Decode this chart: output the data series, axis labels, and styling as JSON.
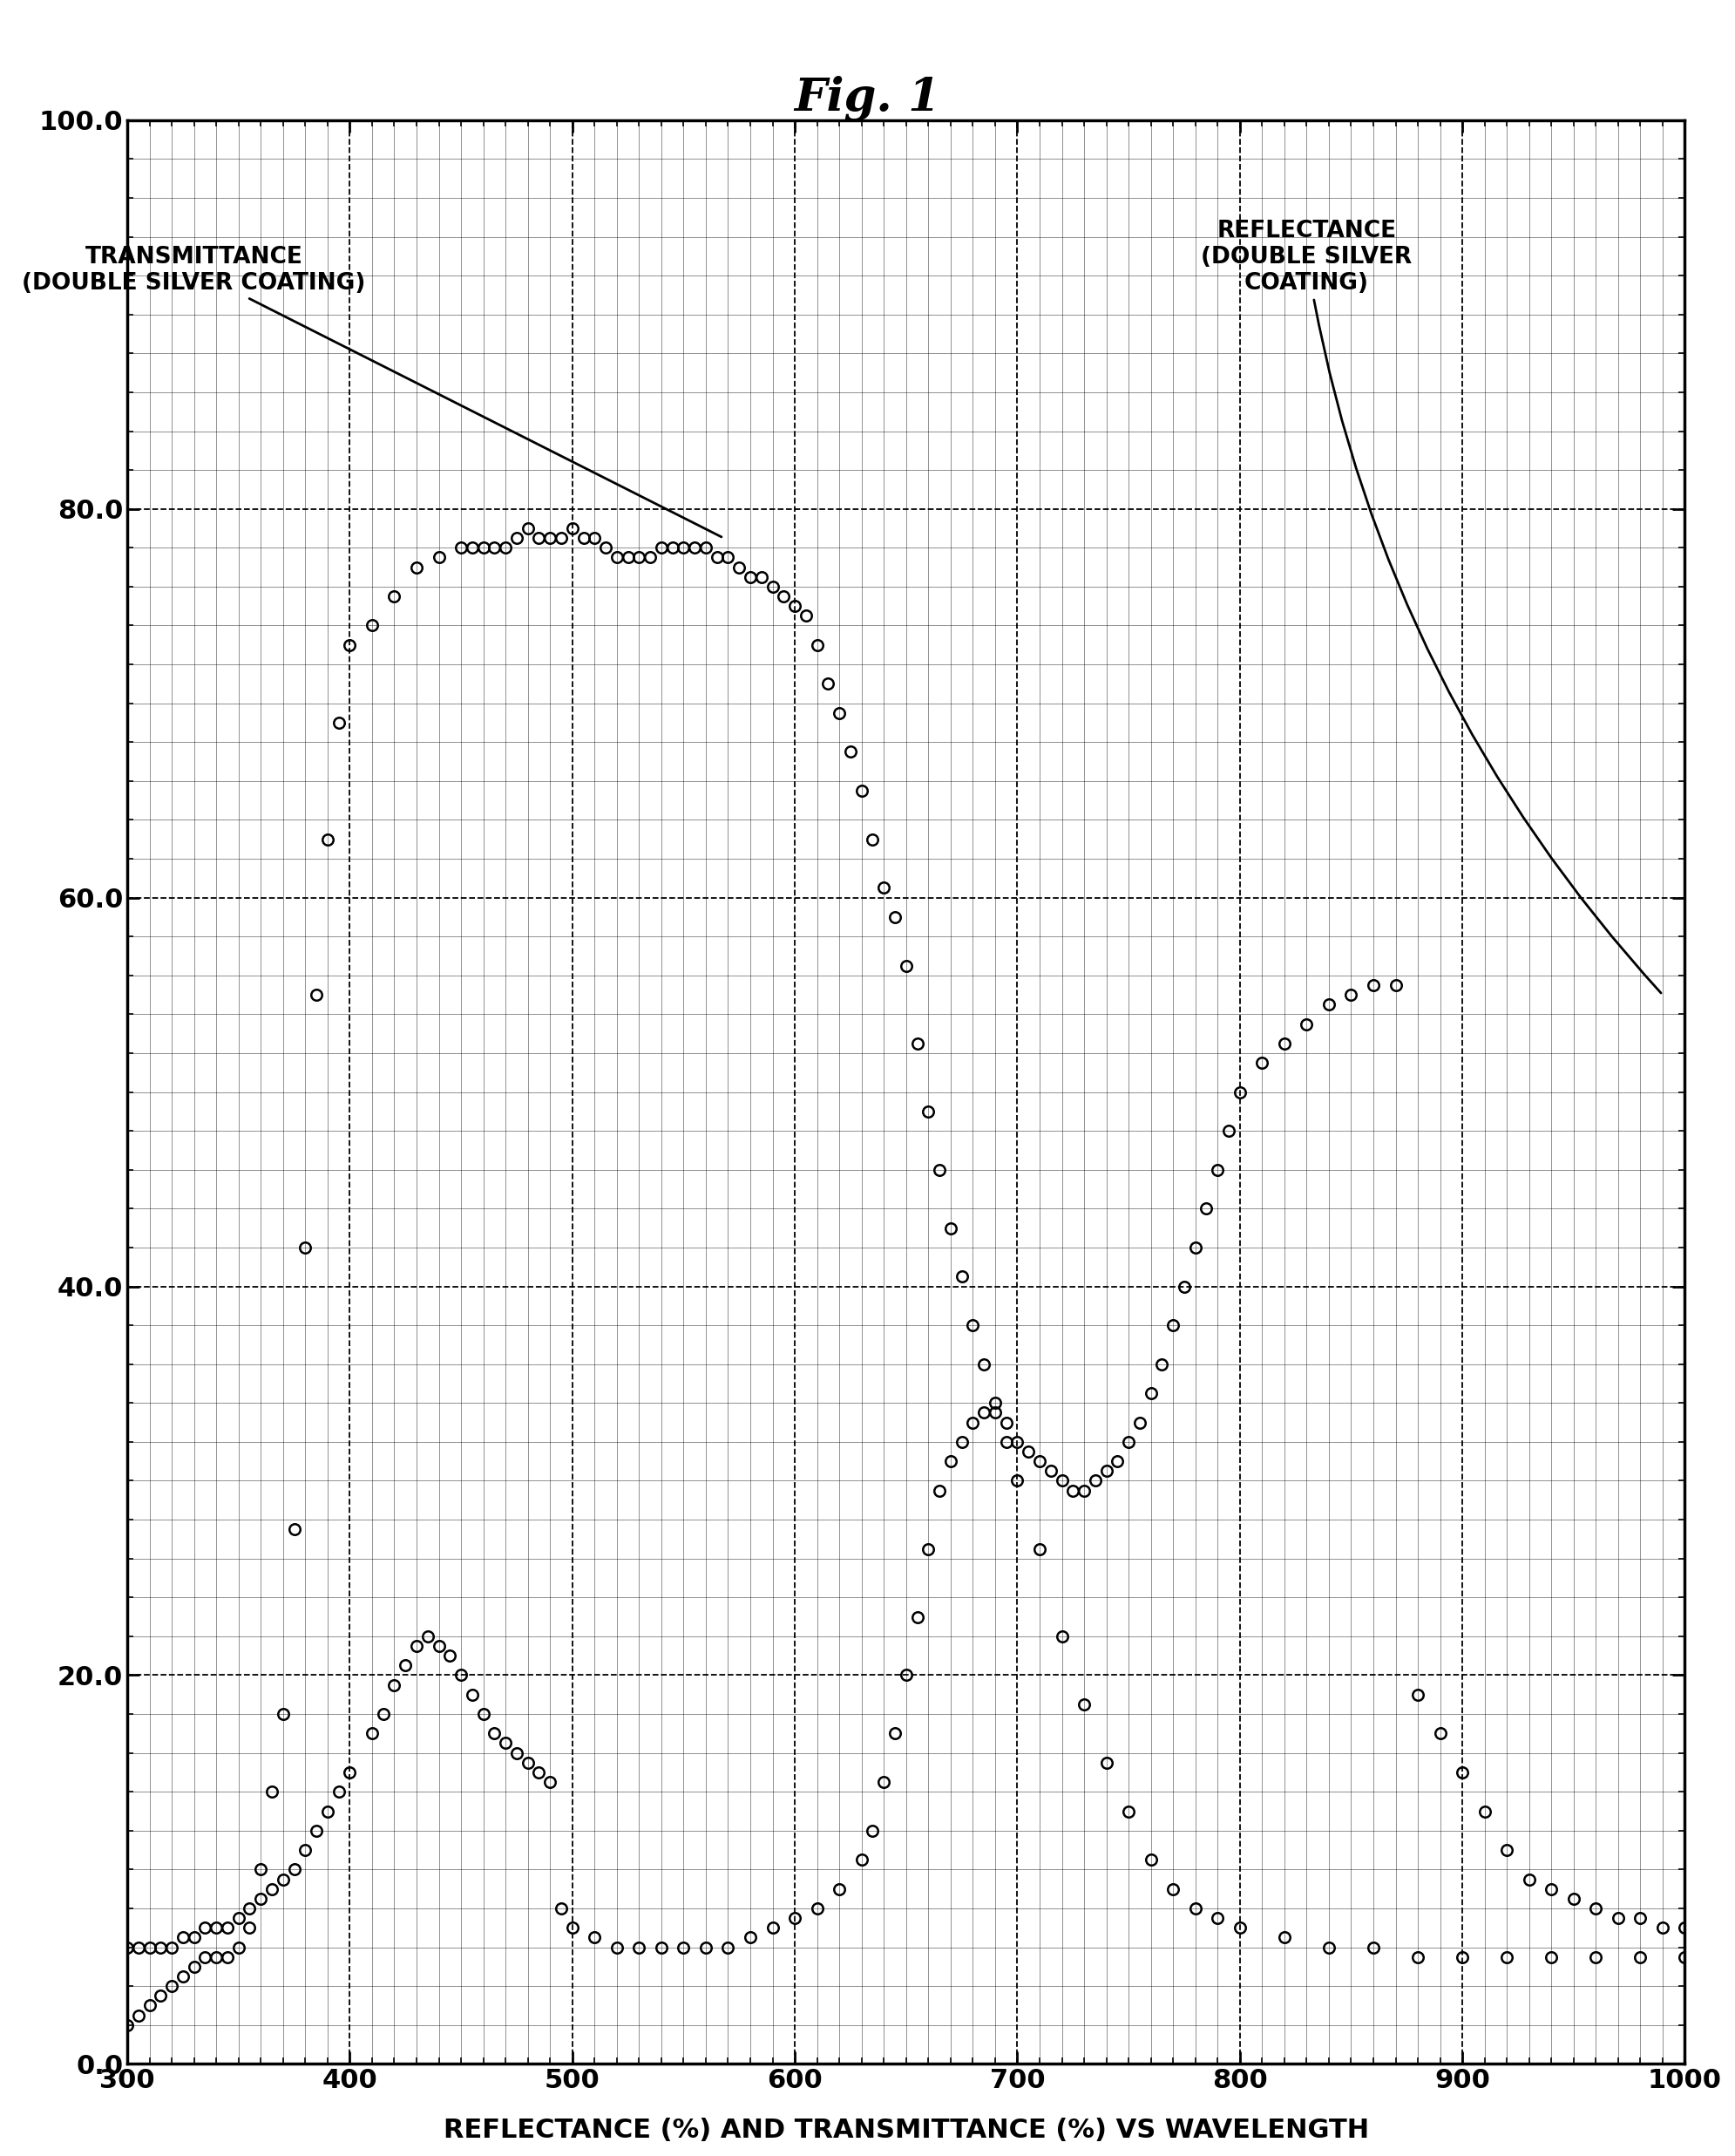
{
  "title": "Fig. 1",
  "xlabel": "REFLECTANCE (%) AND TRANSMITTANCE (%) VS WAVELENGTH",
  "xlim": [
    300,
    1000
  ],
  "ylim": [
    0.0,
    100.0
  ],
  "yticks": [
    0.0,
    20.0,
    40.0,
    60.0,
    80.0,
    100.0
  ],
  "xticks": [
    300,
    400,
    500,
    600,
    700,
    800,
    900,
    1000
  ],
  "transmittance_label": "TRANSMITTANCE\n(DOUBLE SILVER COATING)",
  "reflectance_label": "REFLECTANCE\n(DOUBLE SILVER\nCOATING)",
  "transmittance_x": [
    300,
    305,
    310,
    315,
    320,
    325,
    330,
    335,
    340,
    345,
    350,
    355,
    360,
    365,
    370,
    375,
    380,
    385,
    390,
    395,
    400,
    410,
    420,
    430,
    440,
    450,
    455,
    460,
    465,
    470,
    475,
    480,
    485,
    490,
    495,
    500,
    505,
    510,
    515,
    520,
    525,
    530,
    535,
    540,
    545,
    550,
    555,
    560,
    565,
    570,
    575,
    580,
    585,
    590,
    595,
    600,
    605,
    610,
    615,
    620,
    625,
    630,
    635,
    640,
    645,
    650,
    655,
    660,
    665,
    670,
    675,
    680,
    685,
    690,
    695,
    700,
    710,
    720,
    730,
    740,
    750,
    760,
    770,
    780,
    790,
    800,
    820,
    840,
    860,
    880,
    900,
    920,
    940,
    960,
    980,
    1000
  ],
  "transmittance_y": [
    2.0,
    2.5,
    3.0,
    3.5,
    4.0,
    4.5,
    5.0,
    5.5,
    5.5,
    5.5,
    6.0,
    7.0,
    10.0,
    14.0,
    18.0,
    27.5,
    42.0,
    55.0,
    63.0,
    69.0,
    73.0,
    74.0,
    75.5,
    77.0,
    77.5,
    78.0,
    78.0,
    78.0,
    78.0,
    78.0,
    78.5,
    79.0,
    78.5,
    78.5,
    78.5,
    79.0,
    78.5,
    78.5,
    78.0,
    77.5,
    77.5,
    77.5,
    77.5,
    78.0,
    78.0,
    78.0,
    78.0,
    78.0,
    77.5,
    77.5,
    77.0,
    76.5,
    76.5,
    76.0,
    75.5,
    75.0,
    74.5,
    73.0,
    71.0,
    69.5,
    67.5,
    65.5,
    63.0,
    60.5,
    59.0,
    56.5,
    52.5,
    49.0,
    46.0,
    43.0,
    40.5,
    38.0,
    36.0,
    34.0,
    32.0,
    30.0,
    26.5,
    22.0,
    18.5,
    15.5,
    13.0,
    10.5,
    9.0,
    8.0,
    7.5,
    7.0,
    6.5,
    6.0,
    6.0,
    5.5,
    5.5,
    5.5,
    5.5,
    5.5,
    5.5,
    5.5
  ],
  "reflectance_x": [
    300,
    305,
    310,
    315,
    320,
    325,
    330,
    335,
    340,
    345,
    350,
    355,
    360,
    365,
    370,
    375,
    380,
    385,
    390,
    395,
    400,
    410,
    415,
    420,
    425,
    430,
    435,
    440,
    445,
    450,
    455,
    460,
    465,
    470,
    475,
    480,
    485,
    490,
    495,
    500,
    510,
    520,
    530,
    540,
    550,
    560,
    570,
    580,
    590,
    600,
    610,
    620,
    630,
    635,
    640,
    645,
    650,
    655,
    660,
    665,
    670,
    675,
    680,
    685,
    690,
    695,
    700,
    705,
    710,
    715,
    720,
    725,
    730,
    735,
    740,
    745,
    750,
    755,
    760,
    765,
    770,
    775,
    780,
    785,
    790,
    795,
    800,
    810,
    820,
    830,
    840,
    850,
    860,
    870,
    880,
    890,
    900,
    910,
    920,
    930,
    940,
    950,
    960,
    970,
    980,
    990,
    1000
  ],
  "reflectance_y": [
    6.0,
    6.0,
    6.0,
    6.0,
    6.0,
    6.5,
    6.5,
    7.0,
    7.0,
    7.0,
    7.5,
    8.0,
    8.5,
    9.0,
    9.5,
    10.0,
    11.0,
    12.0,
    13.0,
    14.0,
    15.0,
    17.0,
    18.0,
    19.5,
    20.5,
    21.5,
    22.0,
    21.5,
    21.0,
    20.0,
    19.0,
    18.0,
    17.0,
    16.5,
    16.0,
    15.5,
    15.0,
    14.5,
    8.0,
    7.0,
    6.5,
    6.0,
    6.0,
    6.0,
    6.0,
    6.0,
    6.0,
    6.5,
    7.0,
    7.5,
    8.0,
    9.0,
    10.5,
    12.0,
    14.5,
    17.0,
    20.0,
    23.0,
    26.5,
    29.5,
    31.0,
    32.0,
    33.0,
    33.5,
    33.5,
    33.0,
    32.0,
    31.5,
    31.0,
    30.5,
    30.0,
    29.5,
    29.5,
    30.0,
    30.5,
    31.0,
    32.0,
    33.0,
    34.5,
    36.0,
    38.0,
    40.0,
    42.0,
    44.0,
    46.0,
    48.0,
    50.0,
    51.5,
    52.5,
    53.5,
    54.5,
    55.0,
    55.5,
    55.5,
    19.0,
    17.0,
    15.0,
    13.0,
    11.0,
    9.5,
    9.0,
    8.5,
    8.0,
    7.5,
    7.5,
    7.0,
    7.0
  ],
  "marker_size": 9,
  "background_color": "#ffffff",
  "title_fontsize": 38,
  "axis_label_fontsize": 22,
  "tick_fontsize": 22,
  "annotation_fontsize": 19
}
